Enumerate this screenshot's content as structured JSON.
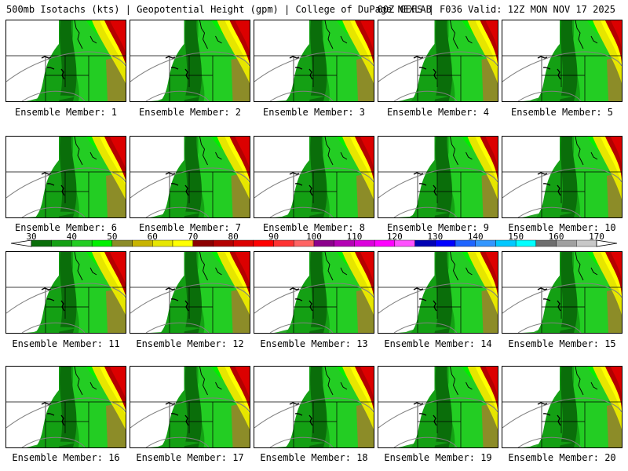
{
  "title": {
    "left": "500mb Isotachs (kts) | Geopotential Height (gpm) | College of DuPage NEXLAB",
    "right": "00Z GEFS | F036 Valid: 12Z MON NOV 17 2025"
  },
  "caption_prefix": "Ensemble Member:",
  "members": [
    "1",
    "2",
    "3",
    "4",
    "5",
    "6",
    "7",
    "8",
    "9",
    "10",
    "11",
    "12",
    "13",
    "14",
    "15",
    "16",
    "17",
    "18",
    "19",
    "20"
  ],
  "colorbar": {
    "labels": [
      "30",
      "40",
      "50",
      "60",
      "70",
      "80",
      "90",
      "100",
      "110",
      "120",
      "130",
      "140",
      "150",
      "160",
      "170"
    ],
    "colors": [
      "#0a6e0a",
      "#14a014",
      "#23cd23",
      "#00f000",
      "#8c8c28",
      "#c8b400",
      "#e6e600",
      "#ffff00",
      "#8c0000",
      "#b40000",
      "#dc0000",
      "#ff0000",
      "#ff3232",
      "#ff6464",
      "#8c008c",
      "#b400b4",
      "#dc00dc",
      "#ff00ff",
      "#ff50ff",
      "#0000b4",
      "#0000ff",
      "#1e64ff",
      "#3296ff",
      "#00c8ff",
      "#00ffff",
      "#6e6e6e",
      "#a0a0a0",
      "#c8c8c8"
    ]
  }
}
